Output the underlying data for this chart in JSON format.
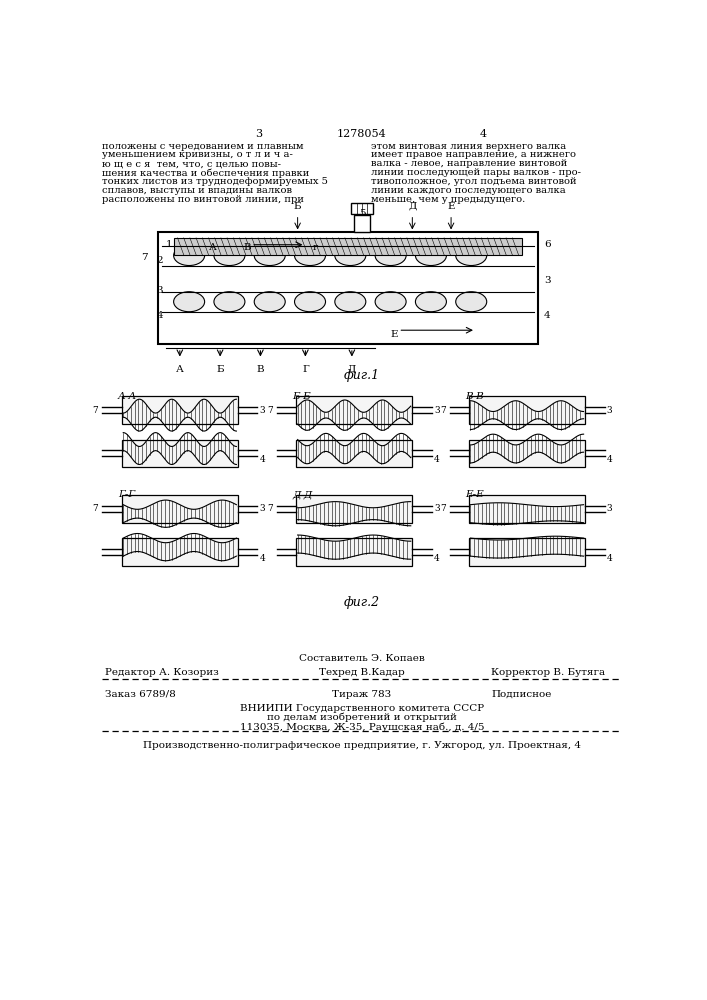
{
  "page_number_left": "3",
  "page_number_center": "1278054",
  "page_number_right": "4",
  "text_left": "положены с чередованием и плавным\nуменьшением кривизны, о т л и ч а-\nю щ е с я  тем, что, с целью повы-\nшения качества и обеспечения правки\nтонких листов из труднодеформируемых 5\nсплавов, выступы и впадины валков\nрасположены по винтовой линии, при",
  "text_right": "этом винтовая линия верхнего валка\nимеет правое направление, а нижнего\nвалка - левое, направление винтовой\nлинии последующей пары валков - про-\nтивоположное, угол подъема винтовой\nлинии каждого последующего валка\nменьше, чем у предыдущего.",
  "fig1_label": "фиг.1",
  "fig2_label": "фиг.2",
  "editor_label": "Редактор А. Козориз",
  "composer_label": "Составитель Э. Копаев",
  "techred_label": "Техред В.Кадар",
  "corrector_label": "Корректор В. Бутяга",
  "order_label": "Заказ 6789/8",
  "tirazh_label": "Тираж 783",
  "podpisnoe_label": "Подписное",
  "vnipi_line1": "ВНИИПИ Государственного комитета СССР",
  "vnipi_line2": "по делам изобретений и открытий",
  "vnipi_line3": "113035, Москва, Ж-35, Раушская наб., д. 4/5",
  "production_line": "Производственно-полиграфическое предприятие, г. Ужгород, ул. Проектная, 4",
  "bg_color": "#ffffff",
  "text_color": "#000000"
}
